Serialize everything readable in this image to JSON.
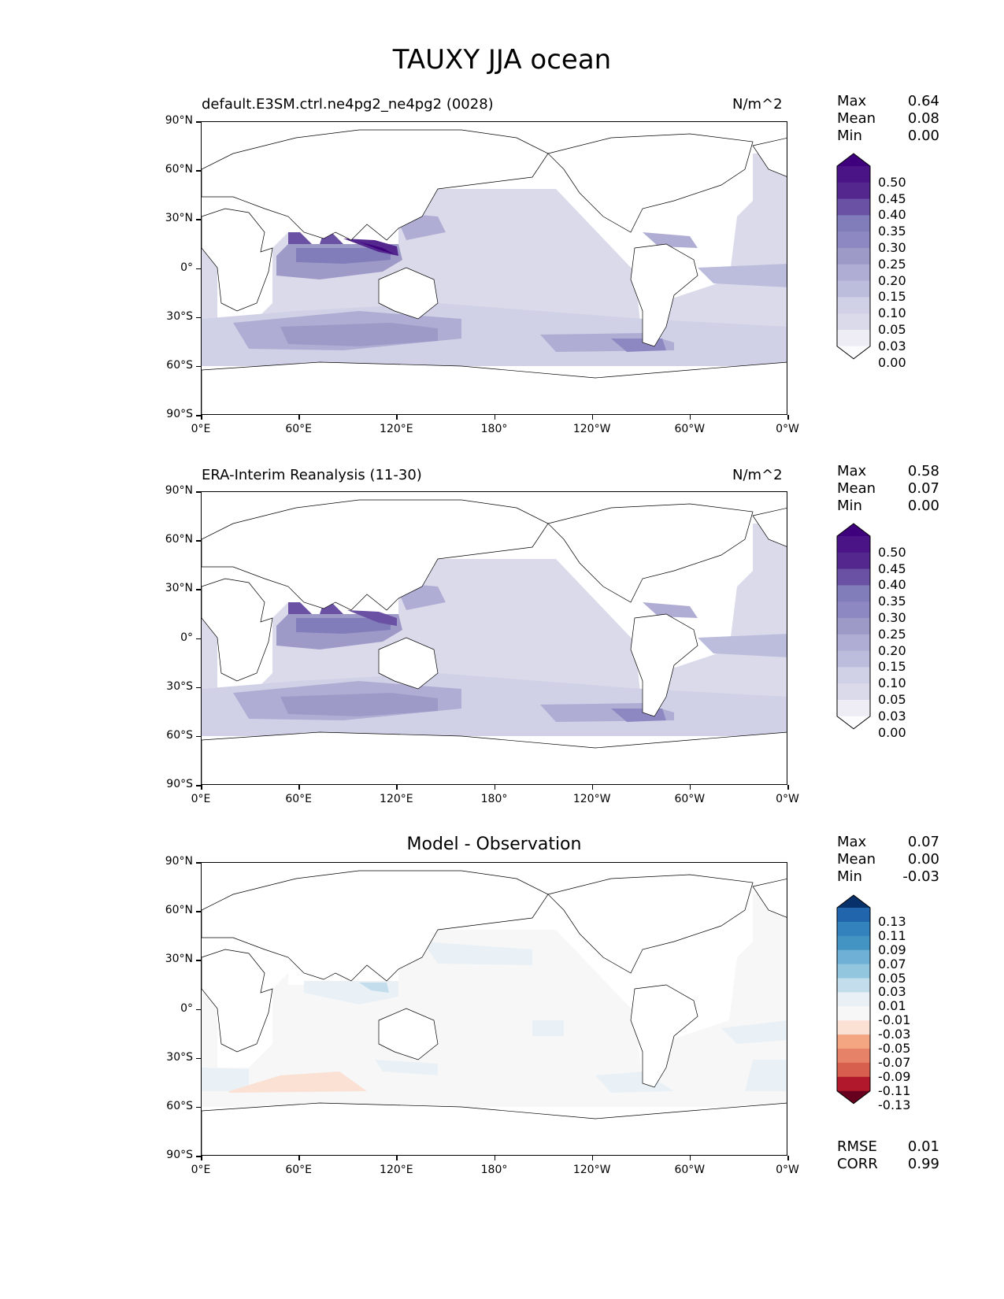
{
  "title": "TAUXY JJA ocean",
  "x_ticks": [
    "0°E",
    "60°E",
    "120°E",
    "180°",
    "120°W",
    "60°W",
    "0°W"
  ],
  "y_ticks": [
    "90°N",
    "60°N",
    "30°N",
    "0°",
    "30°S",
    "60°S",
    "90°S"
  ],
  "panels": [
    {
      "title": "default.E3SM.ctrl.ne4pg2_ne4pg2 (0028)",
      "units": "N/m^2",
      "stats": [
        {
          "label": "Max",
          "value": "0.64"
        },
        {
          "label": "Mean",
          "value": "0.08"
        },
        {
          "label": "Min",
          "value": "0.00"
        }
      ]
    },
    {
      "title": "ERA-Interim Reanalysis (11-30)",
      "units": "N/m^2",
      "stats": [
        {
          "label": "Max",
          "value": "0.58"
        },
        {
          "label": "Mean",
          "value": "0.07"
        },
        {
          "label": "Min",
          "value": "0.00"
        }
      ]
    },
    {
      "title": "Model - Observation",
      "units": "",
      "stats": [
        {
          "label": "Max",
          "value": "0.07"
        },
        {
          "label": "Mean",
          "value": "0.00"
        },
        {
          "label": "Min",
          "value": "-0.03"
        }
      ],
      "extra_stats": [
        {
          "label": "RMSE",
          "value": "0.01"
        },
        {
          "label": "CORR",
          "value": "0.99"
        }
      ]
    }
  ],
  "colorbars": {
    "seq_levels": [
      "0.50",
      "0.45",
      "0.40",
      "0.35",
      "0.30",
      "0.25",
      "0.20",
      "0.15",
      "0.10",
      "0.05",
      "0.03",
      "0.00"
    ],
    "seq_colors": [
      "#3f007d",
      "#4a1486",
      "#54278f",
      "#6a51a3",
      "#807dba",
      "#8e88c2",
      "#9e9ac8",
      "#b0add4",
      "#bcbddc",
      "#d0d1e6",
      "#dadaeb",
      "#eeedf5",
      "#fcfbfd"
    ],
    "diff_levels": [
      "0.13",
      "0.11",
      "0.09",
      "0.07",
      "0.05",
      "0.03",
      "0.01",
      "-0.01",
      "-0.03",
      "-0.05",
      "-0.07",
      "-0.09",
      "-0.11",
      "-0.13"
    ],
    "diff_colors": [
      "#08306b",
      "#2166ac",
      "#3482bd",
      "#4393c3",
      "#6fb1d6",
      "#92c5de",
      "#c3ddec",
      "#e9f1f6",
      "#f7f7f7",
      "#fbe0d4",
      "#f4a582",
      "#e58267",
      "#d6604d",
      "#b2182b",
      "#67001f"
    ]
  },
  "chart_data": [
    {
      "type": "heatmap",
      "title": "default.E3SM.ctrl.ne4pg2_ne4pg2 (0028)",
      "units": "N/m^2",
      "x_range": [
        0,
        360
      ],
      "y_range": [
        -90,
        90
      ],
      "levels": [
        0.0,
        0.03,
        0.05,
        0.1,
        0.15,
        0.2,
        0.25,
        0.3,
        0.35,
        0.4,
        0.45,
        0.5
      ],
      "max": 0.64,
      "mean": 0.08,
      "min": 0.0
    },
    {
      "type": "heatmap",
      "title": "ERA-Interim Reanalysis (11-30)",
      "units": "N/m^2",
      "x_range": [
        0,
        360
      ],
      "y_range": [
        -90,
        90
      ],
      "levels": [
        0.0,
        0.03,
        0.05,
        0.1,
        0.15,
        0.2,
        0.25,
        0.3,
        0.35,
        0.4,
        0.45,
        0.5
      ],
      "max": 0.58,
      "mean": 0.07,
      "min": 0.0
    },
    {
      "type": "heatmap",
      "title": "Model - Observation",
      "x_range": [
        0,
        360
      ],
      "y_range": [
        -90,
        90
      ],
      "levels": [
        -0.13,
        -0.11,
        -0.09,
        -0.07,
        -0.05,
        -0.03,
        -0.01,
        0.01,
        0.03,
        0.05,
        0.07,
        0.09,
        0.11,
        0.13
      ],
      "max": 0.07,
      "mean": 0.0,
      "min": -0.03,
      "rmse": 0.01,
      "corr": 0.99
    }
  ]
}
